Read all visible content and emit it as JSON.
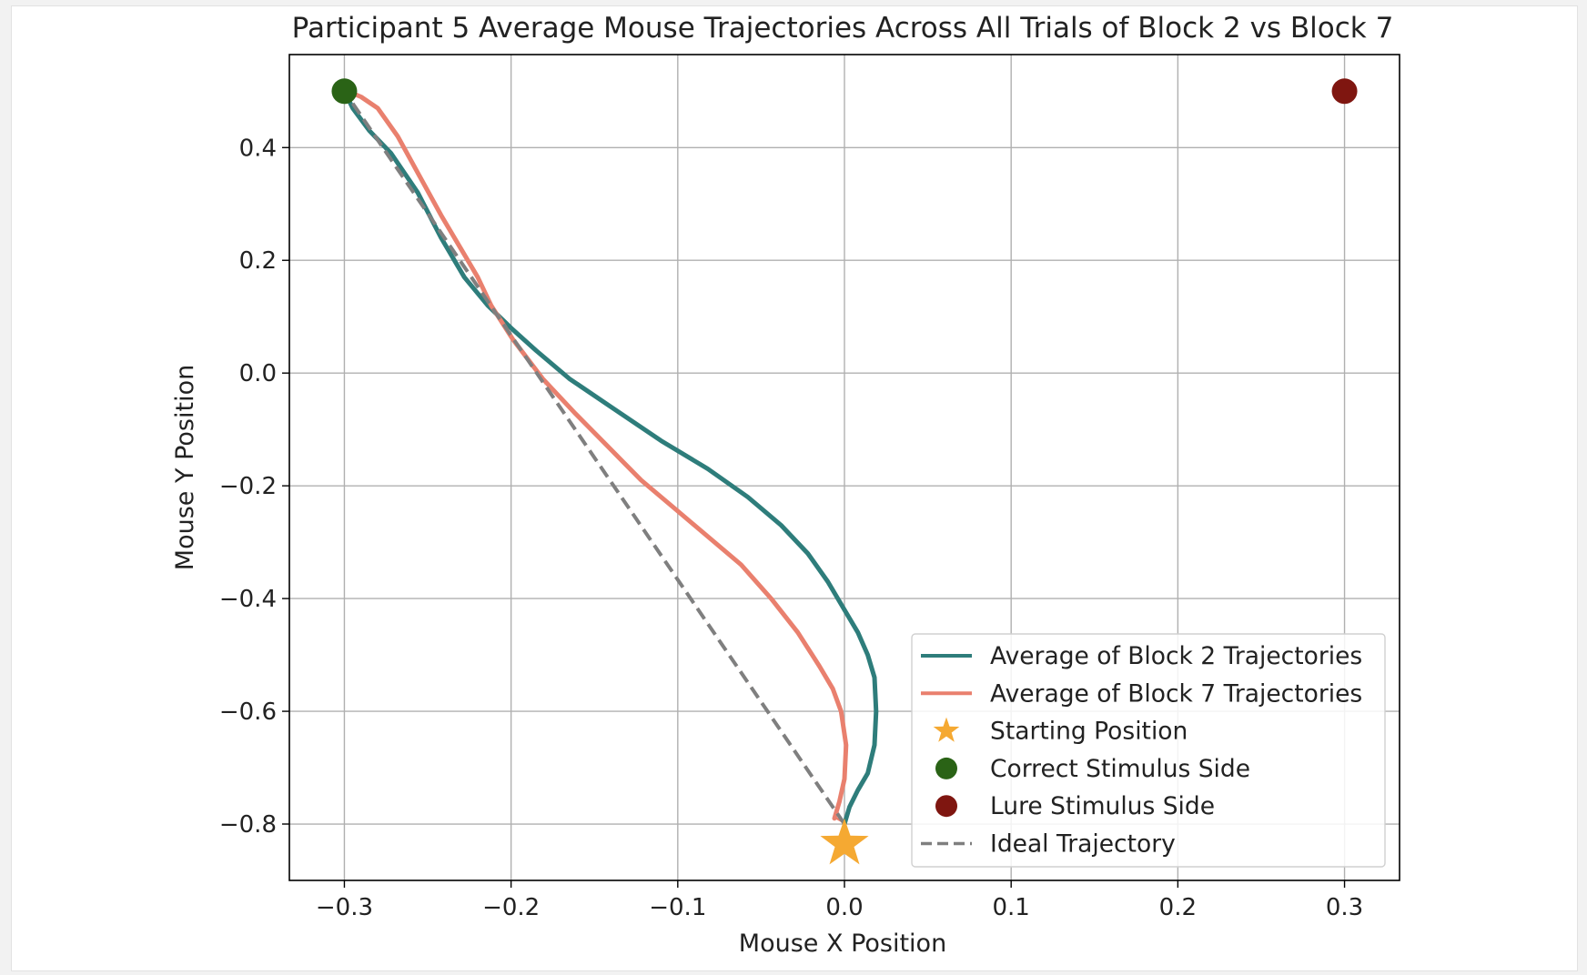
{
  "chart_data": {
    "type": "line",
    "title": "Participant 5 Average Mouse Trajectories Across All Trials of Block 2 vs Block 7",
    "xlabel": "Mouse X Position",
    "ylabel": "Mouse Y Position",
    "xlim": [
      -0.333,
      0.333
    ],
    "ylim": [
      -0.9,
      0.565
    ],
    "grid": true,
    "legend_position": "lower-right",
    "x_ticks": [
      -0.3,
      -0.2,
      -0.1,
      0.0,
      0.1,
      0.2,
      0.3
    ],
    "x_tick_labels": [
      "−0.3",
      "−0.2",
      "−0.1",
      "0.0",
      "0.1",
      "0.2",
      "0.3"
    ],
    "y_ticks": [
      0.4,
      0.2,
      0.0,
      -0.2,
      -0.4,
      -0.6,
      -0.8
    ],
    "y_tick_labels": [
      "0.4",
      "0.2",
      "0.0",
      "−0.2",
      "−0.4",
      "−0.6",
      "−0.8"
    ],
    "series": [
      {
        "name": "Average of Block 2 Trajectories",
        "color": "#2e7d7b",
        "x": [
          0.0,
          0.003,
          0.008,
          0.014,
          0.018,
          0.019,
          0.018,
          0.014,
          0.008,
          0.0,
          -0.01,
          -0.022,
          -0.038,
          -0.058,
          -0.082,
          -0.11,
          -0.14,
          -0.165,
          -0.185,
          -0.2,
          -0.214,
          -0.228,
          -0.242,
          -0.256,
          -0.272,
          -0.285,
          -0.295,
          -0.3
        ],
        "y": [
          -0.8,
          -0.77,
          -0.74,
          -0.71,
          -0.66,
          -0.6,
          -0.54,
          -0.5,
          -0.46,
          -0.42,
          -0.37,
          -0.32,
          -0.27,
          -0.22,
          -0.17,
          -0.12,
          -0.06,
          -0.01,
          0.04,
          0.08,
          0.12,
          0.17,
          0.24,
          0.32,
          0.39,
          0.43,
          0.47,
          0.5
        ]
      },
      {
        "name": "Average of Block 7 Trajectories",
        "color": "#e9806e",
        "x": [
          -0.006,
          -0.003,
          0.0,
          0.001,
          -0.002,
          -0.007,
          -0.015,
          -0.028,
          -0.044,
          -0.062,
          -0.082,
          -0.102,
          -0.122,
          -0.142,
          -0.162,
          -0.181,
          -0.199,
          -0.212,
          -0.22,
          -0.23,
          -0.242,
          -0.255,
          -0.268,
          -0.28,
          -0.29,
          -0.298,
          -0.3
        ],
        "y": [
          -0.79,
          -0.76,
          -0.72,
          -0.66,
          -0.6,
          -0.56,
          -0.52,
          -0.46,
          -0.4,
          -0.34,
          -0.29,
          -0.24,
          -0.19,
          -0.13,
          -0.07,
          -0.01,
          0.06,
          0.12,
          0.17,
          0.22,
          0.28,
          0.35,
          0.42,
          0.47,
          0.49,
          0.5,
          0.5
        ]
      },
      {
        "name": "Ideal Trajectory",
        "color": "#7f7f7f",
        "style": "dashed",
        "x": [
          0.0,
          -0.3
        ],
        "y": [
          -0.8,
          0.5
        ]
      }
    ],
    "points": [
      {
        "name": "Starting Position",
        "x": 0.0,
        "y": -0.835,
        "marker": "star",
        "color": "#f5a932"
      },
      {
        "name": "Correct Stimulus Side",
        "x": -0.3,
        "y": 0.5,
        "marker": "circle",
        "color": "#2a6316"
      },
      {
        "name": "Lure Stimulus Side",
        "x": 0.3,
        "y": 0.5,
        "marker": "circle",
        "color": "#7f1610"
      }
    ],
    "shaded_region": {
      "between": [
        "Ideal Trajectory",
        "Average of Block 7 Trajectories"
      ],
      "pattern": "hatched",
      "colors": [
        "#e9806e",
        "#000000"
      ]
    },
    "legend": [
      {
        "label": "Average of Block 2 Trajectories",
        "kind": "line",
        "color": "#2e7d7b"
      },
      {
        "label": "Average of Block 7 Trajectories",
        "kind": "line",
        "color": "#e9806e"
      },
      {
        "label": "Starting Position",
        "kind": "star",
        "color": "#f5a932"
      },
      {
        "label": "Correct Stimulus Side",
        "kind": "circle",
        "color": "#2a6316"
      },
      {
        "label": "Lure Stimulus Side",
        "kind": "circle",
        "color": "#7f1610"
      },
      {
        "label": "Ideal Trajectory",
        "kind": "dashed",
        "color": "#7f7f7f"
      }
    ]
  }
}
